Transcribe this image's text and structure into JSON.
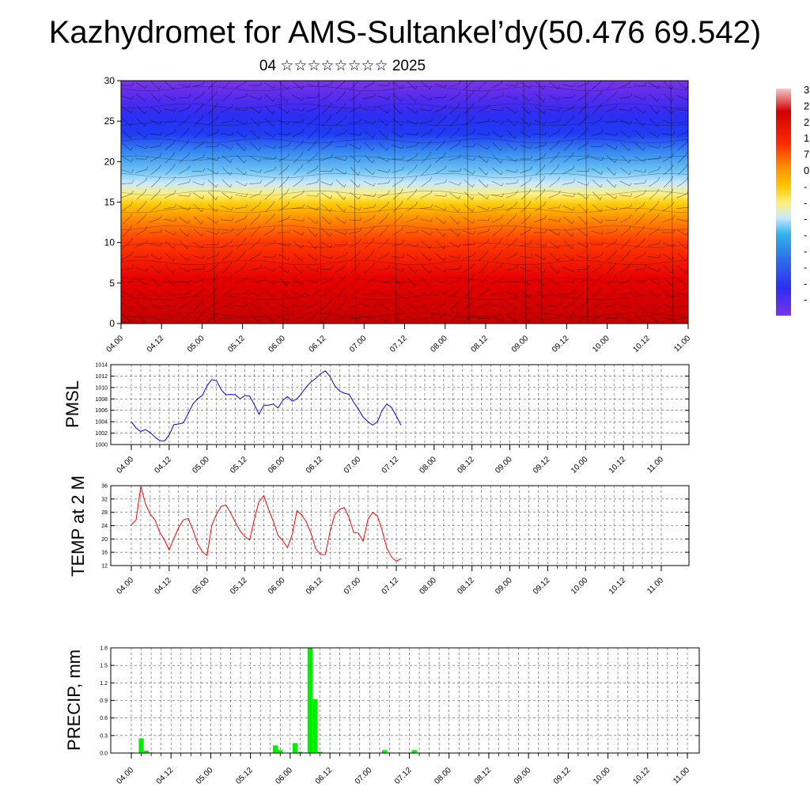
{
  "title": "Kazhydromet for AMS-Sultankel’dy(50.476 69.542)",
  "subtitle": "04 ☆☆☆☆☆☆☆☆ 2025",
  "time_labels": [
    "04.00",
    "04.12",
    "05.00",
    "05.12",
    "06.00",
    "06.12",
    "07.00",
    "07.12",
    "08.00",
    "08.12",
    "09.00",
    "09.12",
    "10.00",
    "10.12",
    "11.00"
  ],
  "colors": {
    "pmsl_line": "#0000ff",
    "temp_line": "#ff0000",
    "precip_bar": "#00ee00"
  },
  "chart_data": [
    {
      "type": "heatmap",
      "name": "cross-section",
      "title": "",
      "ylim": [
        0,
        30
      ],
      "yticks": [
        0,
        5,
        10,
        15,
        20,
        25,
        30
      ],
      "colorbar_labels": [
        "3",
        "2",
        "2",
        "1",
        "7",
        "0",
        "-",
        "-",
        "-",
        "-",
        "-",
        "-",
        "-",
        "-"
      ]
    },
    {
      "type": "line",
      "name": "pmsl",
      "ylabel": "PMSL",
      "ylim": [
        1000,
        1014
      ],
      "yticks": [
        1000,
        1002,
        1004,
        1006,
        1008,
        1010,
        1012,
        1014
      ],
      "x_step_hours": 3,
      "values": [
        1004.0,
        1002.9,
        1002.3,
        1002.6,
        1002.1,
        1001.3,
        1000.7,
        1000.6,
        1001.7,
        1003.5,
        1003.6,
        1003.8,
        1005.4,
        1007.1,
        1008.0,
        1008.6,
        1010.3,
        1011.4,
        1011.2,
        1009.6,
        1008.7,
        1008.8,
        1008.7,
        1008.0,
        1008.6,
        1008.5,
        1007.0,
        1005.3,
        1006.9,
        1006.9,
        1007.1,
        1006.4,
        1007.7,
        1008.4,
        1007.6,
        1008.0,
        1009.0,
        1010.1,
        1011.0,
        1011.6,
        1012.4,
        1012.9,
        1011.9,
        1010.3,
        1009.4,
        1009.0,
        1008.8,
        1007.4,
        1006.2,
        1004.8,
        1004.0,
        1003.4,
        1004.0,
        1006.0,
        1007.1,
        1006.5,
        1005.0,
        1003.4
      ]
    },
    {
      "type": "line",
      "name": "temp2m",
      "ylabel": "TEMP at 2 M",
      "ylim": [
        12,
        36
      ],
      "yticks": [
        12,
        16,
        20,
        24,
        28,
        32,
        36
      ],
      "x_step_hours": 3,
      "values": [
        24.2,
        25.7,
        35.8,
        30.5,
        27.4,
        25.7,
        22.0,
        19.7,
        16.7,
        20.2,
        23.4,
        25.7,
        26.2,
        22.8,
        18.6,
        16.2,
        15.0,
        24.1,
        27.5,
        29.8,
        30.2,
        27.8,
        25.0,
        22.4,
        20.7,
        19.7,
        25.9,
        31.3,
        33.0,
        28.9,
        25.3,
        21.1,
        19.5,
        17.4,
        21.3,
        28.5,
        27.2,
        25.1,
        21.6,
        17.0,
        15.3,
        15.3,
        22.3,
        27.3,
        28.9,
        29.4,
        26.5,
        21.9,
        21.8,
        19.3,
        25.9,
        28.0,
        26.9,
        22.6,
        17.2,
        14.6,
        13.3,
        14.1
      ]
    },
    {
      "type": "bar",
      "name": "precip",
      "ylabel": "PRECIP, mm",
      "ylim": [
        0,
        1.8
      ],
      "yticks": [
        "0.0",
        "0.3",
        "0.6",
        "0.9",
        "1.2",
        "1.5",
        "1.8"
      ],
      "x_step_hours": 3,
      "values": [
        0.01,
        0,
        0.25,
        0.04,
        0.01,
        0,
        0,
        0,
        0,
        0,
        0,
        0,
        0,
        0,
        0,
        0,
        0,
        0,
        0,
        0,
        0,
        0,
        0,
        0,
        0,
        0,
        0,
        0,
        0,
        0.13,
        0.05,
        0,
        0,
        0.17,
        0.02,
        0.01,
        1.8,
        0.92,
        0.02,
        0,
        0,
        0,
        0,
        0,
        0,
        0,
        0,
        0,
        0,
        0,
        0,
        0.05,
        0,
        0,
        0,
        0,
        0,
        0.05
      ]
    }
  ]
}
